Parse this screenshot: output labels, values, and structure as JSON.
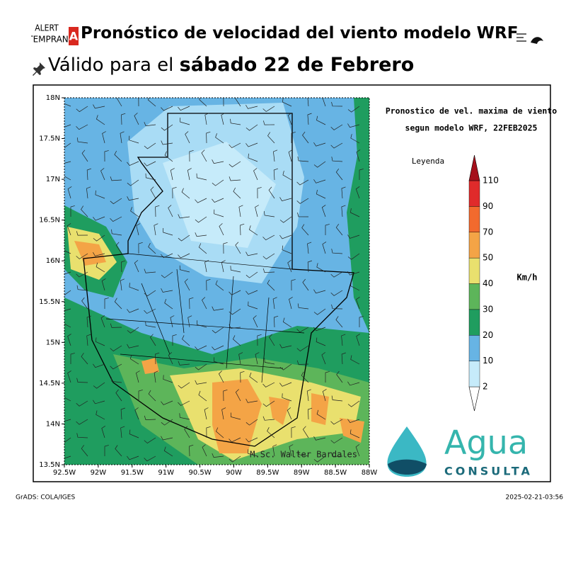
{
  "header": {
    "logo_top": "ALERT",
    "logo_bottom": "TEMPRAN",
    "logo_mark": "A",
    "title": "Pronóstico de velocidad del viento modelo WRF",
    "valid_prefix": "Válido para el",
    "valid_date": "sábado 22 de Febrero"
  },
  "map": {
    "title_line1": "Pronostico de vel. maxima de viento",
    "title_line2": "segun modelo WRF, 22FEB2025",
    "lat_labels": [
      "18N",
      "17.5N",
      "17N",
      "16.5N",
      "16N",
      "15.5N",
      "15N",
      "14.5N",
      "14N",
      "13.5N"
    ],
    "lon_labels": [
      "92.5W",
      "92W",
      "91.5W",
      "91W",
      "90.5W",
      "90W",
      "89.5W",
      "89W",
      "88.5W",
      "88W"
    ],
    "credit": "M.Sc. Walter Bardales"
  },
  "legend": {
    "title": "Leyenda",
    "unit": "Km/h",
    "levels": [
      2,
      10,
      20,
      30,
      40,
      50,
      70,
      90,
      110
    ],
    "colors": [
      "#ffffff",
      "#c6ebfa",
      "#67b4e4",
      "#1f9d5f",
      "#5db55a",
      "#e9e06e",
      "#f4a446",
      "#f26a2e",
      "#e02b2b",
      "#a5101c"
    ]
  },
  "brand": {
    "name": "Agua",
    "tagline": "CONSULTA"
  },
  "footer": {
    "left": "GrADS: COLA/IGES",
    "right": "2025-02-21-03:56"
  }
}
